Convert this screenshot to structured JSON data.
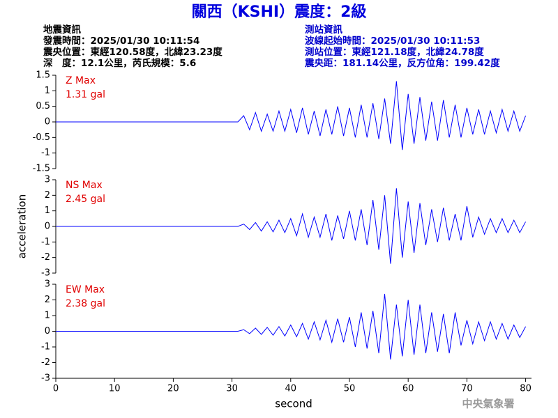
{
  "header": {
    "title": "關西（KSHI）震度：2級",
    "left_info": [
      "地震資訊",
      "發震時間：2025/01/30 10:11:54",
      "震央位置：東經120.58度，北緯23.23度",
      "深　度：12.1公里，芮氏規模：5.6"
    ],
    "right_info": [
      "測站資訊",
      "波線起始時間：2025/01/30 10:11:53",
      "測站位置：東經121.18度，北緯24.78度",
      "震央距：181.14公里，反方位角：199.42度"
    ]
  },
  "footer": {
    "agency": "中央氣象署"
  },
  "chart_data": [
    {
      "type": "line",
      "annotations": [
        "Z Max",
        "1.31 gal"
      ],
      "color": "#0000ff",
      "xlim": [
        0,
        81
      ],
      "x": [
        0,
        31,
        32,
        33,
        34,
        35,
        36,
        37,
        38,
        39,
        40,
        41,
        42,
        43,
        44,
        45,
        46,
        47,
        48,
        49,
        50,
        51,
        52,
        53,
        54,
        55,
        56,
        57,
        58,
        59,
        60,
        61,
        62,
        63,
        64,
        65,
        66,
        67,
        68,
        69,
        70,
        71,
        72,
        73,
        74,
        75,
        76,
        77,
        78,
        79,
        80
      ],
      "values": [
        0,
        0,
        0.2,
        -0.25,
        0.3,
        -0.3,
        0.25,
        -0.3,
        0.35,
        -0.3,
        0.4,
        -0.35,
        0.45,
        -0.4,
        0.35,
        -0.45,
        0.4,
        -0.4,
        0.5,
        -0.45,
        0.45,
        -0.5,
        0.55,
        -0.5,
        0.6,
        -0.55,
        0.75,
        -0.7,
        1.31,
        -0.9,
        0.9,
        -0.7,
        0.8,
        -0.6,
        0.65,
        -0.6,
        0.7,
        -0.5,
        0.55,
        -0.5,
        0.45,
        -0.4,
        0.4,
        -0.4,
        0.35,
        -0.35,
        0.4,
        -0.3,
        0.35,
        -0.3,
        0.2
      ],
      "ylim": [
        -1.5,
        1.5
      ],
      "yticks": [
        -1.5,
        -1,
        -0.5,
        0,
        0.5,
        1,
        1.5
      ]
    },
    {
      "type": "line",
      "annotations": [
        "NS Max",
        "2.45 gal"
      ],
      "color": "#0000ff",
      "ylabel": "acceleration",
      "xlim": [
        0,
        81
      ],
      "x": [
        0,
        31,
        32,
        33,
        34,
        35,
        36,
        37,
        38,
        39,
        40,
        41,
        42,
        43,
        44,
        45,
        46,
        47,
        48,
        49,
        50,
        51,
        52,
        53,
        54,
        55,
        56,
        57,
        58,
        59,
        60,
        61,
        62,
        63,
        64,
        65,
        66,
        67,
        68,
        69,
        70,
        71,
        72,
        73,
        74,
        75,
        76,
        77,
        78,
        79,
        80
      ],
      "values": [
        0,
        0,
        0.15,
        -0.2,
        0.25,
        -0.3,
        0.3,
        -0.35,
        0.4,
        -0.4,
        0.5,
        -0.6,
        0.8,
        -0.7,
        0.6,
        -0.7,
        0.8,
        -0.9,
        0.7,
        -0.8,
        1.0,
        -0.9,
        1.1,
        -1.2,
        1.7,
        -1.5,
        2.0,
        -2.4,
        2.45,
        -2.0,
        1.6,
        -1.7,
        1.5,
        -1.2,
        1.1,
        -1.0,
        1.2,
        -0.9,
        0.8,
        -0.9,
        1.3,
        -0.7,
        0.6,
        -0.5,
        0.5,
        -0.4,
        0.5,
        -0.4,
        0.4,
        -0.4,
        0.3
      ],
      "ylim": [
        -3,
        3
      ],
      "yticks": [
        -3,
        -2,
        -1,
        0,
        1,
        2,
        3
      ]
    },
    {
      "type": "line",
      "annotations": [
        "EW Max",
        "2.38 gal"
      ],
      "color": "#0000ff",
      "xlabel": "second",
      "xlim": [
        0,
        81
      ],
      "xticks": [
        0,
        10,
        20,
        30,
        40,
        50,
        60,
        70,
        80
      ],
      "x": [
        0,
        31,
        32,
        33,
        34,
        35,
        36,
        37,
        38,
        39,
        40,
        41,
        42,
        43,
        44,
        45,
        46,
        47,
        48,
        49,
        50,
        51,
        52,
        53,
        54,
        55,
        56,
        57,
        58,
        59,
        60,
        61,
        62,
        63,
        64,
        65,
        66,
        67,
        68,
        69,
        70,
        71,
        72,
        73,
        74,
        75,
        76,
        77,
        78,
        79,
        80
      ],
      "values": [
        0,
        0,
        0.1,
        -0.15,
        0.2,
        -0.2,
        0.25,
        -0.25,
        0.3,
        -0.3,
        0.4,
        -0.35,
        0.5,
        -0.5,
        0.6,
        -0.55,
        0.7,
        -0.7,
        0.8,
        -0.7,
        0.9,
        -1.0,
        1.2,
        -1.1,
        1.3,
        -1.4,
        2.38,
        -1.8,
        1.7,
        -1.6,
        2.0,
        -1.5,
        1.7,
        -1.4,
        1.2,
        -1.3,
        1.1,
        -1.4,
        1.2,
        -0.9,
        0.7,
        -0.8,
        0.6,
        -0.6,
        0.6,
        -0.5,
        0.5,
        -0.5,
        0.4,
        -0.4,
        0.3
      ],
      "ylim": [
        -3,
        3
      ],
      "yticks": [
        -3,
        -2,
        -1,
        0,
        1,
        2,
        3
      ]
    }
  ]
}
